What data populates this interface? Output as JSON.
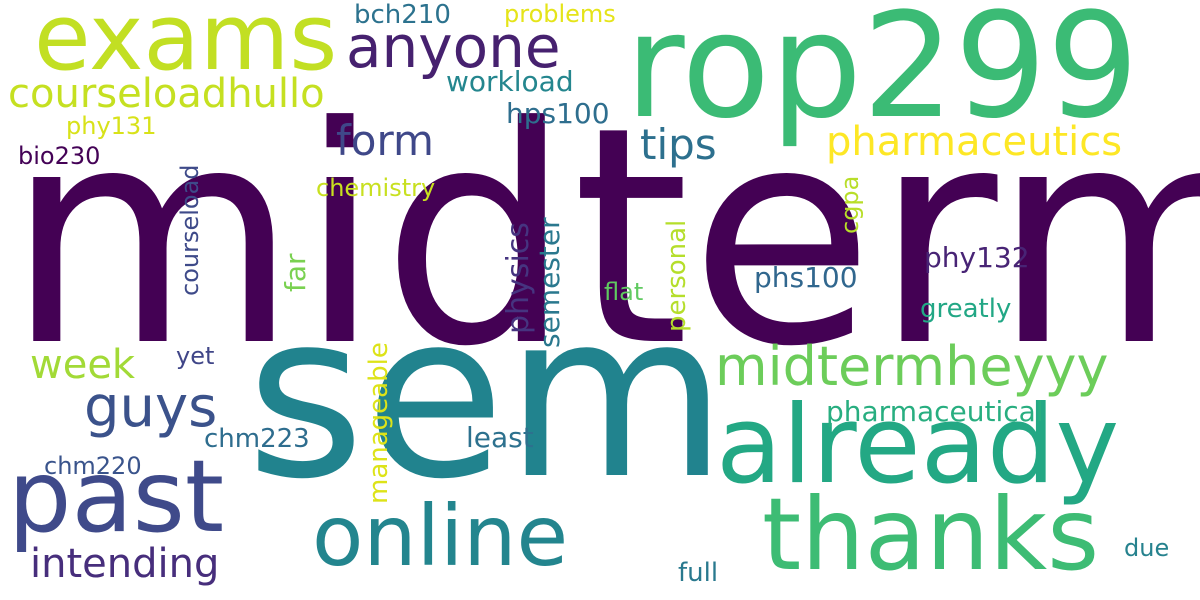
{
  "words": [
    {
      "text": "midterm",
      "color": "#440154"
    },
    {
      "text": "sem",
      "color": "#21838e"
    },
    {
      "text": "rop299",
      "color": "#3bbb75"
    },
    {
      "text": "exams",
      "color": "#c2df23"
    },
    {
      "text": "already",
      "color": "#23a884"
    },
    {
      "text": "thanks",
      "color": "#3dbc74"
    },
    {
      "text": "online",
      "color": "#23858e"
    },
    {
      "text": "past",
      "color": "#3f4a8a"
    },
    {
      "text": "anyone",
      "color": "#46216f"
    },
    {
      "text": "midtermheyyy",
      "color": "#6ccd5a"
    },
    {
      "text": "courseloadhullo",
      "color": "#c5e021"
    },
    {
      "text": "guys",
      "color": "#3b528b"
    },
    {
      "text": "pharmaceutics",
      "color": "#fde725"
    },
    {
      "text": "form",
      "color": "#3f4889"
    },
    {
      "text": "tips",
      "color": "#2d708e"
    },
    {
      "text": "week",
      "color": "#a2da37"
    },
    {
      "text": "intending",
      "color": "#472e7c"
    },
    {
      "text": "workload",
      "color": "#24868e"
    },
    {
      "text": "hps100",
      "color": "#2e6e8e"
    },
    {
      "text": "bch210",
      "color": "#2c728e"
    },
    {
      "text": "problems",
      "color": "#e5e419"
    },
    {
      "text": "phy131",
      "color": "#d8e219"
    },
    {
      "text": "bio230",
      "color": "#440256"
    },
    {
      "text": "chemistry",
      "color": "#c8e020"
    },
    {
      "text": "courseload",
      "color": "#3e4a89"
    },
    {
      "text": "far",
      "color": "#7ad151"
    },
    {
      "text": "physics",
      "color": "#463480"
    },
    {
      "text": "semester",
      "color": "#2a788e"
    },
    {
      "text": "personal",
      "color": "#b5de2b"
    },
    {
      "text": "cgpa",
      "color": "#b8de29"
    },
    {
      "text": "phy132",
      "color": "#482475"
    },
    {
      "text": "phs100",
      "color": "#31678e"
    },
    {
      "text": "flat",
      "color": "#60ca60"
    },
    {
      "text": "greatly",
      "color": "#22a785"
    },
    {
      "text": "manageable",
      "color": "#dde318"
    },
    {
      "text": "yet",
      "color": "#404688"
    },
    {
      "text": "pharmaceutical",
      "color": "#28ae80"
    },
    {
      "text": "chm223",
      "color": "#2e6d8e"
    },
    {
      "text": "least",
      "color": "#2d718e"
    },
    {
      "text": "chm220",
      "color": "#3a548c"
    },
    {
      "text": "due",
      "color": "#26828e"
    },
    {
      "text": "full",
      "color": "#29798e"
    }
  ]
}
